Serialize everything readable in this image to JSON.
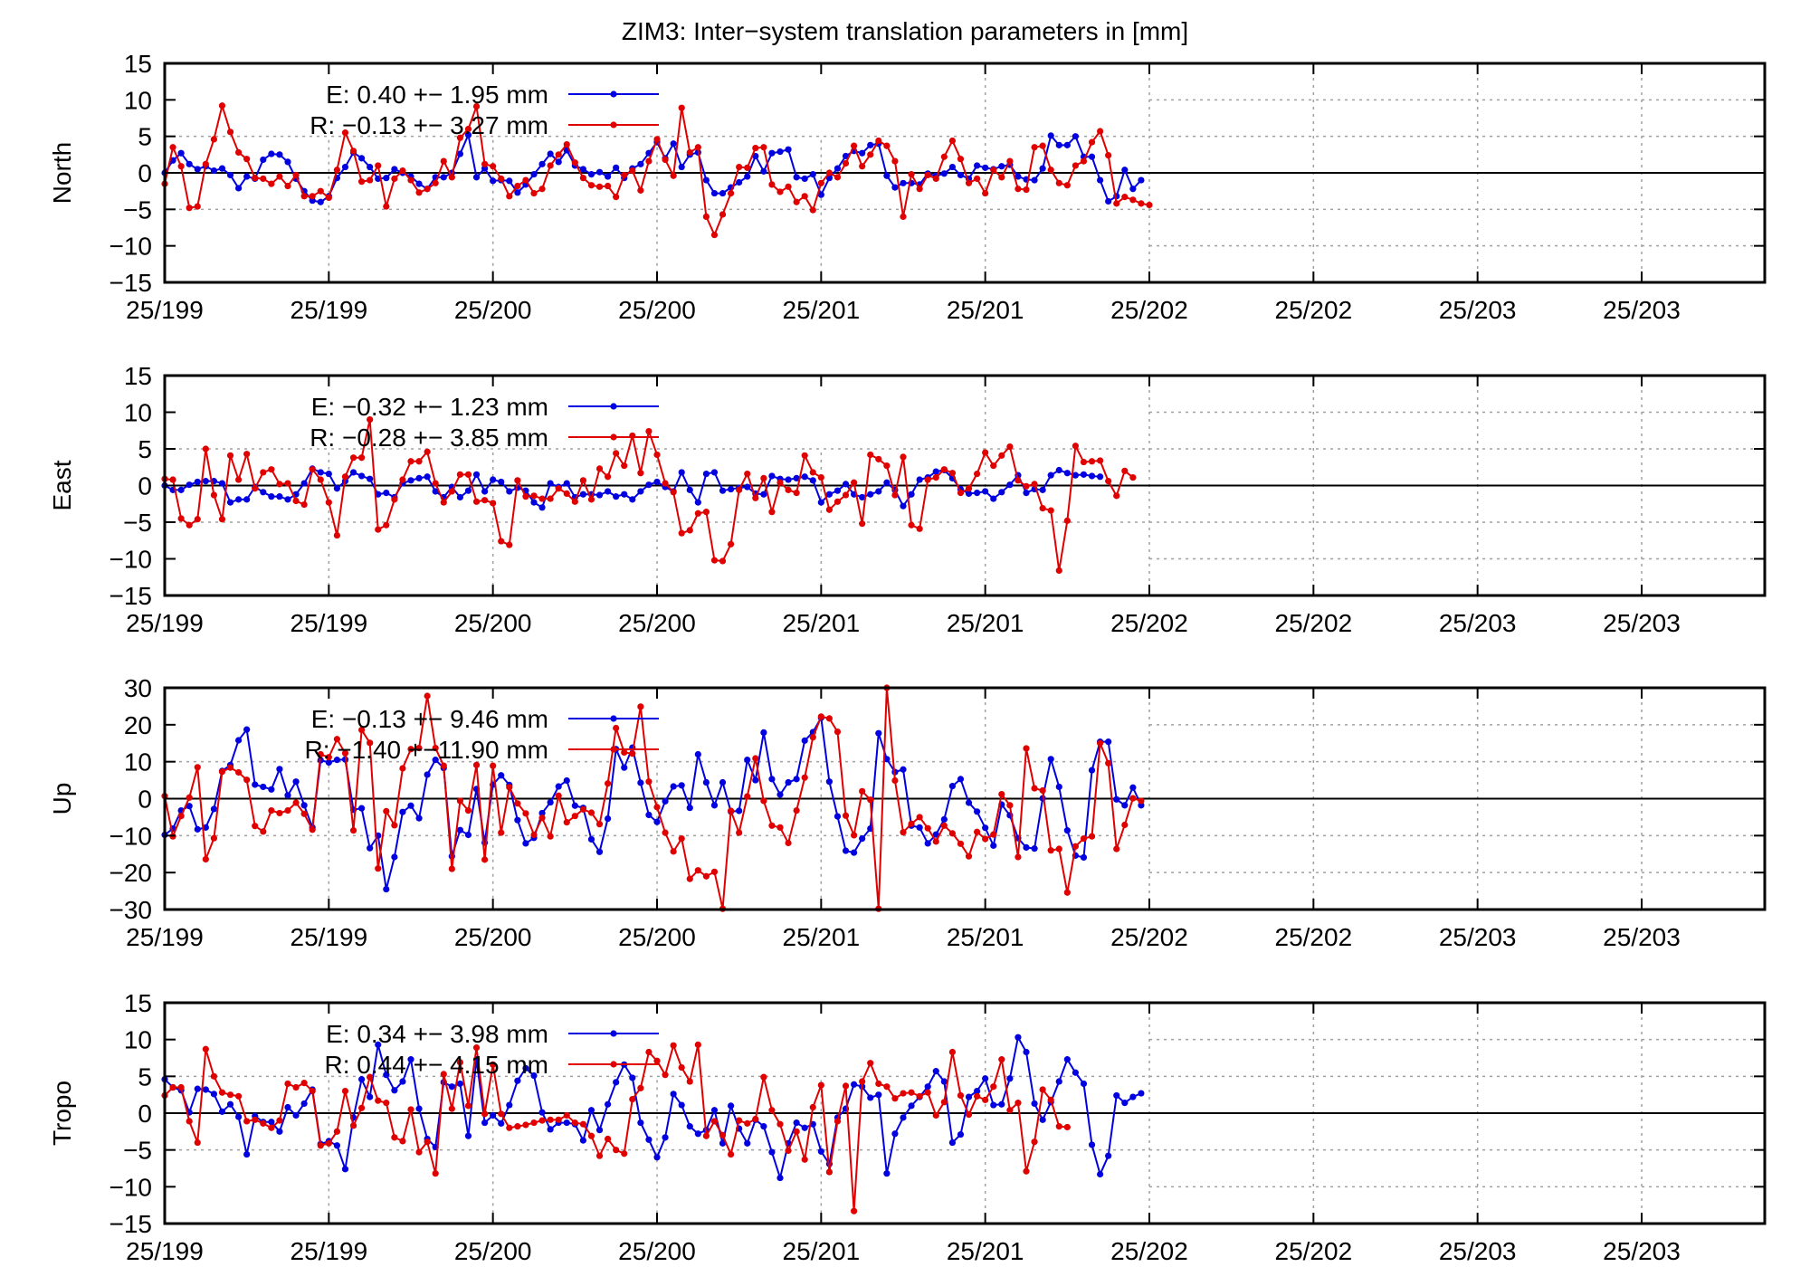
{
  "page_title": "ZIM3: Inter−system translation parameters in [mm]",
  "x_tick_labels": [
    "25/199",
    "25/199",
    "25/200",
    "25/200",
    "25/201",
    "25/201",
    "25/202",
    "25/202",
    "25/203",
    "25/203"
  ],
  "colors": {
    "E": "#0000e0",
    "R": "#e00000",
    "grid": "#a0a0a0",
    "axis": "#000000"
  },
  "chart_data": [
    {
      "type": "line",
      "ylabel": "North",
      "ylim": [
        -15,
        15
      ],
      "yticks": [
        -15,
        -10,
        -5,
        0,
        5,
        10,
        15
      ],
      "x": "index 0-195, ticks every 20",
      "series": [
        {
          "name": "E",
          "legend": "E:   0.40 +− 1.95 mm",
          "values": [
            0.0,
            1.7,
            2.7,
            1.2,
            0.5,
            0.9,
            0.3,
            0.6,
            -0.3,
            -2.1,
            -0.5,
            -0.8,
            1.8,
            2.6,
            2.5,
            1.5,
            -0.8,
            -2.5,
            -3.8,
            -4.0,
            -3.2,
            -0.7,
            0.8,
            2.8,
            2.0,
            0.8,
            -0.8,
            -0.7,
            0.5,
            0.0,
            -0.5,
            -1.5,
            -2.2,
            -0.6,
            -0.6,
            0.0,
            2.6,
            5.2,
            -0.6,
            0.6,
            -1.1,
            -1.0,
            -1.1,
            -2.7,
            -1.6,
            -0.2,
            1.2,
            2.6,
            1.5,
            3.1,
            1.0,
            0.5,
            -0.2,
            0.1,
            -0.5,
            0.7,
            -0.7,
            0.6,
            1.2,
            2.7,
            4.2,
            2.0,
            4.0,
            0.8,
            2.5,
            2.8,
            -1.0,
            -2.8,
            -2.8,
            -2.0,
            -1.3,
            -0.5,
            2.3,
            0.2,
            2.7,
            2.9,
            3.2,
            -0.6,
            -0.8,
            -0.2,
            -3.0,
            -0.7,
            0.6,
            2.3,
            3.0,
            2.7,
            3.8,
            4.0,
            -0.4,
            -2.0,
            -1.4,
            -1.4,
            -1.6,
            -0.1,
            -0.4,
            -0.1,
            0.8,
            -0.3,
            -0.8,
            1.0,
            0.7,
            0.5,
            0.9,
            1.1,
            -0.5,
            -0.9,
            -1.0,
            0.6,
            5.1,
            3.8,
            3.8,
            5.0,
            2.2,
            2.2,
            -1.0,
            -3.9,
            -3.2,
            0.4,
            -2.2,
            -1.0
          ]
        },
        {
          "name": "R",
          "legend": "R:  −0.13 +− 3.27 mm",
          "values": [
            -1.5,
            3.5,
            0.9,
            -4.8,
            -4.6,
            1.2,
            4.6,
            9.2,
            5.6,
            2.8,
            1.9,
            -0.7,
            -0.8,
            -1.5,
            -0.5,
            -1.8,
            -0.3,
            -3.2,
            -3.2,
            -2.5,
            -3.4,
            0.4,
            5.5,
            3.0,
            -1.2,
            -1.0,
            1.0,
            -4.6,
            -0.8,
            0.3,
            -1.0,
            -2.7,
            -2.2,
            -1.4,
            1.6,
            -0.6,
            4.8,
            6.0,
            9.1,
            1.2,
            0.9,
            -0.8,
            -3.2,
            -1.8,
            -1.0,
            -2.8,
            -2.2,
            1.0,
            2.5,
            3.9,
            1.4,
            -0.7,
            -1.7,
            -1.9,
            -1.8,
            -3.3,
            -0.3,
            0.3,
            -2.4,
            1.6,
            4.6,
            1.8,
            -0.4,
            8.9,
            2.8,
            3.5,
            -6.0,
            -8.5,
            -5.7,
            -2.8,
            0.8,
            0.7,
            3.4,
            3.5,
            -1.6,
            -2.6,
            -1.9,
            -4.0,
            -3.2,
            -5.1,
            -1.4,
            0.0,
            -0.6,
            1.3,
            3.7,
            0.9,
            2.5,
            4.4,
            3.7,
            1.6,
            -6.0,
            -0.2,
            -2.2,
            -0.3,
            -0.8,
            2.2,
            4.4,
            1.9,
            -1.4,
            -0.8,
            -2.8,
            0.4,
            -0.6,
            1.6,
            -2.2,
            -2.3,
            3.5,
            3.7,
            0.4,
            -1.4,
            -1.7,
            1.0,
            1.6,
            4.2,
            5.7,
            2.4,
            -4.2,
            -3.3,
            -3.7,
            -4.2,
            -4.4
          ]
        }
      ]
    },
    {
      "type": "line",
      "ylabel": "East",
      "ylim": [
        -15,
        15
      ],
      "yticks": [
        -15,
        -10,
        -5,
        0,
        5,
        10,
        15
      ],
      "series": [
        {
          "name": "E",
          "legend": "E:  −0.32 +− 1.23 mm",
          "values": [
            0.0,
            -0.6,
            -0.6,
            0.1,
            0.5,
            0.6,
            0.6,
            0.3,
            -2.3,
            -1.9,
            -1.9,
            -0.2,
            -0.9,
            -1.5,
            -1.5,
            -1.9,
            -1.2,
            0.3,
            2.3,
            1.8,
            1.6,
            -0.4,
            0.6,
            1.8,
            1.3,
            0.9,
            -1.2,
            -1.0,
            -1.6,
            0.3,
            0.7,
            1.0,
            1.2,
            -0.8,
            -1.6,
            -0.2,
            -1.6,
            -0.7,
            1.5,
            -0.8,
            0.8,
            0.5,
            -0.8,
            -0.3,
            -0.7,
            -2.3,
            -3.0,
            0.3,
            -0.2,
            0.3,
            -1.6,
            -1.2,
            -1.2,
            -1.3,
            -0.8,
            -1.5,
            -1.2,
            -1.9,
            -0.8,
            0.1,
            0.5,
            -0.2,
            -0.8,
            1.8,
            -0.6,
            -2.3,
            1.6,
            1.8,
            -0.7,
            -0.5,
            -0.3,
            -0.2,
            -1.1,
            -1.2,
            1.3,
            0.9,
            0.8,
            1.0,
            1.2,
            0.7,
            -2.3,
            -1.2,
            -0.7,
            0.2,
            -1.2,
            -1.6,
            -1.2,
            -0.8,
            0.4,
            -0.6,
            -2.8,
            -1.2,
            0.8,
            1.1,
            1.9,
            2.1,
            1.0,
            -0.5,
            -1.1,
            -1.0,
            -0.8,
            -1.8,
            -0.9,
            0.1,
            1.4,
            -1.0,
            -0.5,
            -0.6,
            1.4,
            2.1,
            1.7,
            1.4,
            1.5,
            1.3,
            1.2
          ]
        },
        {
          "name": "R",
          "legend": "R:  −0.28 +− 3.85 mm",
          "values": [
            0.9,
            0.8,
            -4.5,
            -5.4,
            -4.6,
            5.0,
            -1.3,
            -4.6,
            4.1,
            0.8,
            4.3,
            -0.4,
            1.8,
            2.2,
            0.2,
            0.3,
            -2.1,
            -2.6,
            2.2,
            0.8,
            -2.3,
            -6.8,
            1.2,
            3.8,
            3.8,
            9.0,
            -6.0,
            -5.4,
            -1.9,
            0.8,
            3.3,
            3.3,
            4.6,
            0.3,
            -2.3,
            -0.8,
            1.5,
            1.5,
            -2.2,
            -2.0,
            -2.4,
            -7.6,
            -8.1,
            0.7,
            -1.5,
            -1.4,
            -1.8,
            -1.8,
            -0.4,
            -1.1,
            -2.2,
            0.7,
            -1.9,
            2.3,
            1.2,
            4.4,
            2.7,
            6.8,
            1.7,
            7.4,
            4.2,
            0.3,
            -0.9,
            -6.5,
            -6.1,
            -3.8,
            -3.6,
            -10.2,
            -10.3,
            -8.0,
            -0.6,
            1.6,
            -1.7,
            1.0,
            -3.6,
            0.4,
            -0.6,
            -1.0,
            4.1,
            1.8,
            1.1,
            -3.3,
            -2.2,
            -1.3,
            0.4,
            -5.2,
            4.2,
            3.6,
            2.7,
            -1.3,
            3.9,
            -5.4,
            -5.9,
            0.8,
            1.1,
            2.2,
            1.7,
            -1.0,
            -0.4,
            1.6,
            4.5,
            2.7,
            4.1,
            5.3,
            0.7,
            -0.1,
            0.2,
            -3.1,
            -3.4,
            -11.6,
            -4.8,
            5.4,
            3.2,
            3.3,
            3.4,
            0.6,
            -1.4,
            2.0,
            1.1
          ]
        }
      ]
    },
    {
      "type": "line",
      "ylabel": "Up",
      "ylim": [
        -30,
        30
      ],
      "yticks": [
        -30,
        -20,
        -10,
        0,
        10,
        20,
        30
      ],
      "series": [
        {
          "name": "E",
          "legend": "E:  −0.13 +− 9.46 mm",
          "values": [
            -9.8,
            -8.1,
            -3.2,
            -2.0,
            -8.3,
            -7.8,
            -2.8,
            7.5,
            9.1,
            15.8,
            18.7,
            3.8,
            3.2,
            2.5,
            8.0,
            0.9,
            4.6,
            -1.8,
            -7.8,
            10.4,
            9.8,
            10.5,
            10.6,
            -3.0,
            -2.6,
            -13.4,
            -10.0,
            -24.5,
            -15.8,
            -3.6,
            -1.9,
            -5.3,
            6.5,
            10.5,
            8.3,
            -15.6,
            -8.5,
            -9.8,
            2.6,
            -11.9,
            3.8,
            6.3,
            3.7,
            -5.8,
            -12.1,
            -10.6,
            -3.9,
            -1.0,
            3.3,
            4.9,
            -1.9,
            -2.5,
            -11.0,
            -14.4,
            -5.4,
            13.4,
            8.4,
            13.8,
            4.3,
            -4.4,
            -6.3,
            -0.7,
            3.3,
            3.6,
            -2.5,
            12.0,
            4.4,
            -1.8,
            4.4,
            -3.5,
            -3.3,
            10.5,
            5.0,
            17.9,
            5.3,
            1.1,
            4.4,
            5.3,
            15.7,
            18.0,
            21.9,
            4.6,
            -4.8,
            -14.1,
            -14.6,
            -10.8,
            -8.1,
            17.7,
            10.7,
            7.2,
            7.9,
            -7.3,
            -7.8,
            -12.1,
            -9.7,
            -5.6,
            3.4,
            5.3,
            -1.1,
            -3.5,
            -7.9,
            -12.7,
            -1.6,
            -4.5,
            -10.7,
            -13.2,
            -13.5,
            0.1,
            10.7,
            3.2,
            -8.6,
            -15.4,
            -15.9,
            7.7,
            15.4,
            15.4,
            -0.2,
            -1.8,
            3.0,
            -1.8
          ]
        },
        {
          "name": "R",
          "legend": "R:  −1.40 +−11.90 mm",
          "values": [
            0.7,
            -10.2,
            -4.7,
            0.3,
            8.5,
            -16.4,
            -10.7,
            7.3,
            8.4,
            7.1,
            5.1,
            -7.4,
            -8.9,
            -3.2,
            -3.9,
            -3.2,
            -1.1,
            -4.1,
            -8.4,
            12.0,
            11.2,
            16.1,
            12.3,
            -8.6,
            18.6,
            15.1,
            -18.9,
            -3.4,
            -7.2,
            8.2,
            13.4,
            13.7,
            27.8,
            13.7,
            8.9,
            -19.0,
            -0.6,
            -3.2,
            9.1,
            -16.5,
            8.9,
            -9.2,
            3.1,
            -1.3,
            -4.0,
            -9.8,
            -5.2,
            -10.2,
            0.8,
            -6.4,
            -4.7,
            -2.9,
            -3.8,
            -6.9,
            4.1,
            19.1,
            12.5,
            12.2,
            24.9,
            4.6,
            -2.3,
            -9.2,
            -14.3,
            -10.8,
            -21.7,
            -19.4,
            -21.0,
            -19.8,
            -29.8,
            -3.3,
            -9.2,
            0.6,
            10.9,
            -0.6,
            -7.3,
            -7.8,
            -12.0,
            -3.2,
            5.7,
            16.6,
            22.2,
            21.7,
            18.1,
            -4.6,
            -9.9,
            2.0,
            -0.3,
            -29.8,
            30.0,
            4.9,
            -9.1,
            -6.8,
            -5.0,
            -8.0,
            -11.6,
            -7.3,
            -9.4,
            -12.2,
            -15.6,
            -9.0,
            -10.9,
            -9.7,
            1.2,
            -1.8,
            -15.8,
            13.6,
            2.8,
            2.2,
            -14.0,
            -13.6,
            -25.4,
            -12.9,
            -10.8,
            -10.2,
            15.0,
            9.6,
            -13.6,
            -7.1,
            0.1,
            -0.6
          ]
        }
      ]
    },
    {
      "type": "line",
      "ylabel": "Tropo",
      "ylim": [
        -15,
        15
      ],
      "yticks": [
        -15,
        -10,
        -5,
        0,
        5,
        10,
        15
      ],
      "series": [
        {
          "name": "E",
          "legend": "E:   0.34 +− 3.98 mm",
          "values": [
            4.6,
            3.5,
            3.1,
            0.1,
            3.3,
            3.2,
            2.6,
            0.2,
            1.2,
            -0.5,
            -5.6,
            -0.4,
            -1.2,
            -1.2,
            -2.5,
            0.8,
            -0.3,
            1.3,
            3.2,
            -4.2,
            -3.8,
            -4.4,
            -7.6,
            -0.6,
            4.6,
            2.2,
            9.3,
            5.2,
            3.1,
            4.3,
            7.3,
            0.6,
            -3.5,
            -4.6,
            4.2,
            3.6,
            4.0,
            -3.1,
            7.3,
            -1.3,
            -0.3,
            -1.4,
            1.1,
            4.4,
            6.1,
            5.1,
            0.1,
            -2.2,
            -1.3,
            -1.3,
            -1.5,
            -3.7,
            0.4,
            -2.3,
            1.2,
            4.2,
            6.6,
            4.8,
            -1.3,
            -3.6,
            -6.0,
            -3.3,
            2.6,
            1.1,
            -1.8,
            -2.8,
            -2.3,
            0.4,
            -4.1,
            1.0,
            -2.1,
            -4.1,
            -0.9,
            -1.8,
            -5.3,
            -8.8,
            -4.1,
            -1.3,
            -2.0,
            -1.5,
            -5.2,
            -6.9,
            -0.6,
            0.6,
            3.9,
            3.6,
            2.1,
            2.5,
            -8.2,
            -2.8,
            -0.6,
            1.0,
            2.2,
            3.6,
            5.7,
            4.3,
            -4.0,
            -2.9,
            2.2,
            3.0,
            4.7,
            1.1,
            1.2,
            4.7,
            10.3,
            8.3,
            1.3,
            -0.9,
            1.5,
            4.3,
            7.3,
            5.5,
            4.0,
            -4.3,
            -8.3,
            -5.8,
            2.4,
            1.4,
            2.2,
            2.7
          ]
        },
        {
          "name": "R",
          "legend": "R:   0.44 +− 4.15 mm",
          "values": [
            2.4,
            3.5,
            3.5,
            -1.1,
            -4.0,
            8.7,
            5.0,
            2.8,
            2.5,
            2.3,
            -1.1,
            -0.9,
            -1.4,
            -2.0,
            -1.0,
            4.0,
            3.5,
            4.1,
            3.0,
            -4.4,
            -4.1,
            -2.5,
            3.0,
            -1.7,
            0.7,
            4.9,
            1.7,
            1.4,
            -3.3,
            -3.8,
            0.5,
            -5.3,
            -3.9,
            -8.2,
            5.3,
            0.6,
            6.9,
            1.0,
            8.9,
            -0.1,
            6.6,
            -0.1,
            -2.0,
            -1.8,
            -1.6,
            -1.3,
            -1.0,
            -0.9,
            -0.9,
            -0.3,
            -1.3,
            -1.5,
            -3.1,
            -5.8,
            -3.5,
            -5.0,
            -5.5,
            1.9,
            3.4,
            8.3,
            7.1,
            5.2,
            9.2,
            6.2,
            4.3,
            9.3,
            -3.1,
            -1.1,
            -3.0,
            -5.6,
            -1.0,
            -1.4,
            -0.8,
            4.9,
            0.4,
            -1.5,
            -5.1,
            -2.5,
            -6.3,
            0.8,
            3.8,
            -8.0,
            -1.1,
            3.7,
            -13.3,
            4.3,
            6.8,
            4.0,
            3.6,
            2.0,
            2.7,
            2.8,
            2.3,
            2.8,
            -0.3,
            1.5,
            8.3,
            2.4,
            -0.2,
            2.3,
            1.8,
            3.6,
            7.3,
            0.4,
            1.4,
            -7.9,
            -3.9,
            3.2,
            1.8,
            -1.8,
            -1.9
          ]
        }
      ]
    }
  ]
}
